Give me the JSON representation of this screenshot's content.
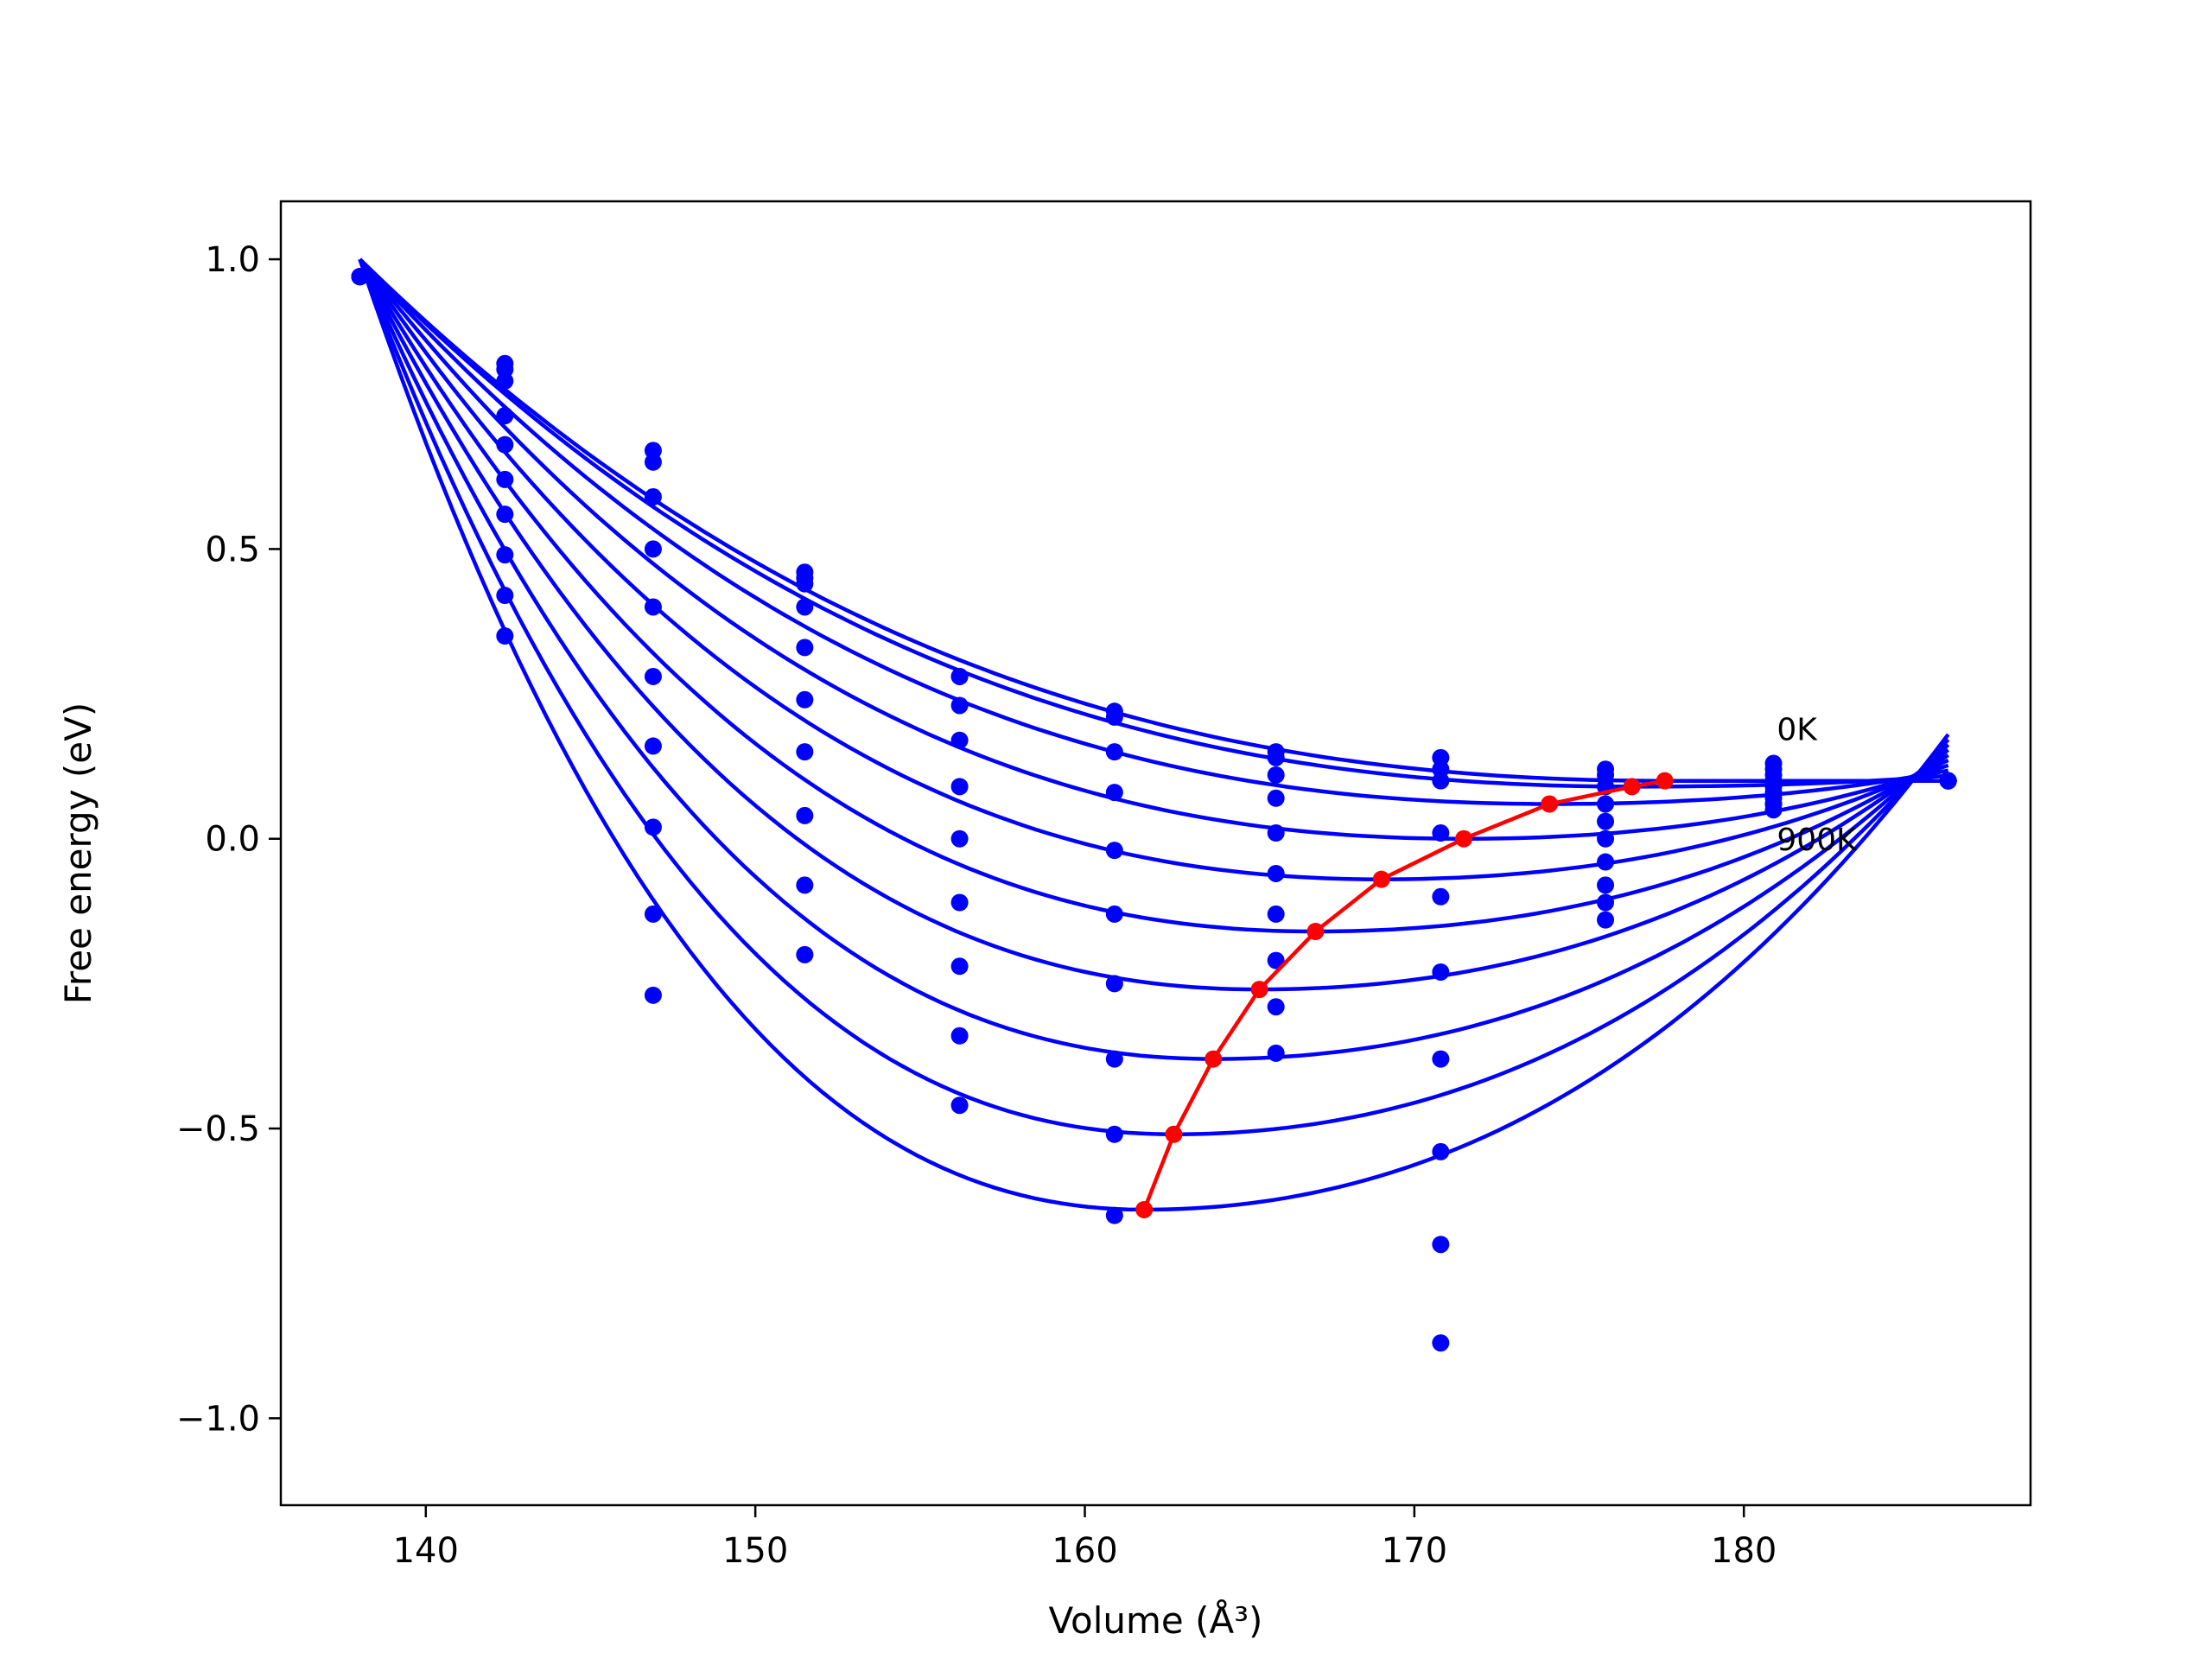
{
  "chart_data": {
    "type": "line",
    "title": "",
    "xlabel": "Volume (Å³)",
    "ylabel": "Free energy (eV)",
    "xlim": [
      135.6,
      188.7
    ],
    "ylim": [
      -1.15,
      1.1
    ],
    "xticks": [
      140,
      150,
      160,
      170,
      180
    ],
    "xtick_labels": [
      "140",
      "150",
      "160",
      "170",
      "180"
    ],
    "yticks": [
      -1.0,
      -0.5,
      0.0,
      0.5,
      1.0
    ],
    "ytick_labels": [
      "−1.0",
      "−0.5",
      "0.0",
      "0.5",
      "1.0"
    ],
    "grid": false,
    "legend": "none",
    "colors": {
      "fits": "#0000ff",
      "points": "#0000ff",
      "minimum_path": "#ff0000"
    },
    "annotations": [
      {
        "text": "0K",
        "x": 181.0,
        "y": 0.17
      },
      {
        "text": "900K",
        "x": 181.0,
        "y": -0.02
      }
    ],
    "volumes": [
      138.0,
      142.4,
      146.9,
      151.5,
      156.2,
      160.9,
      165.8,
      170.8,
      175.8,
      180.9,
      186.2
    ],
    "series": [
      {
        "values": [
          0.97,
          0.82,
          0.67,
          0.46,
          0.28,
          0.22,
          0.15,
          0.14,
          0.12,
          0.13,
          0.1
        ]
      },
      {
        "values": [
          0.97,
          0.81,
          0.65,
          0.45,
          0.28,
          0.21,
          0.14,
          0.12,
          0.11,
          0.12,
          0.1
        ]
      },
      {
        "values": [
          0.97,
          0.79,
          0.59,
          0.44,
          0.23,
          0.15,
          0.11,
          0.1,
          0.09,
          0.11,
          0.1
        ]
      },
      {
        "values": [
          0.97,
          0.73,
          0.5,
          0.4,
          0.17,
          0.08,
          0.07,
          0.01,
          0.06,
          0.1,
          0.1
        ]
      },
      {
        "values": [
          0.97,
          0.68,
          0.4,
          0.33,
          0.09,
          -0.02,
          0.01,
          -0.1,
          0.03,
          0.09,
          0.1
        ]
      },
      {
        "values": [
          0.97,
          0.62,
          0.28,
          0.24,
          0.0,
          -0.13,
          -0.06,
          -0.23,
          0.0,
          0.08,
          0.1
        ]
      },
      {
        "values": [
          0.97,
          0.56,
          0.16,
          0.15,
          -0.11,
          -0.25,
          -0.13,
          -0.38,
          -0.04,
          0.07,
          0.1
        ]
      },
      {
        "values": [
          0.97,
          0.49,
          0.02,
          0.04,
          -0.22,
          -0.38,
          -0.21,
          -0.54,
          -0.08,
          0.06,
          0.1
        ]
      },
      {
        "values": [
          0.97,
          0.42,
          -0.13,
          -0.08,
          -0.34,
          -0.51,
          -0.29,
          -0.7,
          -0.11,
          0.06,
          0.1
        ]
      },
      {
        "values": [
          0.97,
          0.35,
          -0.27,
          -0.2,
          -0.46,
          -0.65,
          -0.37,
          -0.87,
          -0.14,
          0.05,
          0.1
        ]
      }
    ],
    "fit_minima": [
      {
        "v": 177.6,
        "e": 0.1
      },
      {
        "v": 176.6,
        "e": 0.09
      },
      {
        "v": 174.1,
        "e": 0.06
      },
      {
        "v": 171.5,
        "e": 0.0
      },
      {
        "v": 169.0,
        "e": -0.07
      },
      {
        "v": 167.0,
        "e": -0.16
      },
      {
        "v": 165.3,
        "e": -0.26
      },
      {
        "v": 163.9,
        "e": -0.38
      },
      {
        "v": 162.7,
        "e": -0.51
      },
      {
        "v": 161.8,
        "e": -0.64
      }
    ],
    "fit_start": {
      "v": 138.0,
      "e": 1.0
    },
    "fit_end": {
      "v": 186.2,
      "e_min": 0.1,
      "e_max": 0.18
    }
  }
}
